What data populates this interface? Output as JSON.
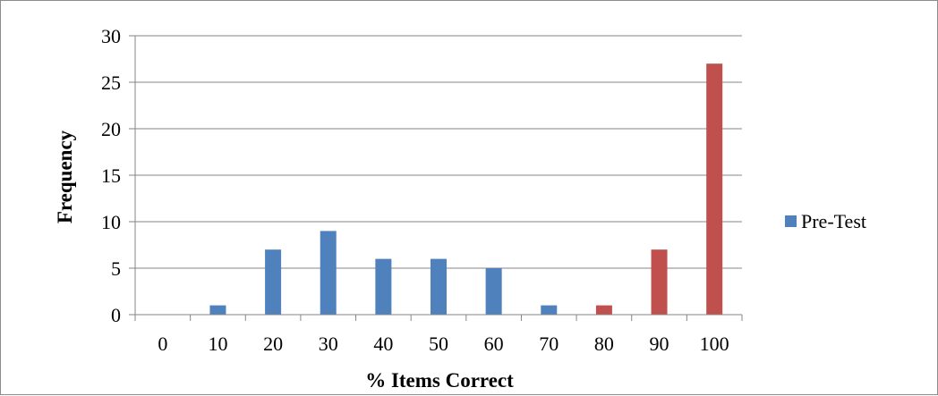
{
  "chart_data": {
    "type": "bar",
    "categories": [
      "0",
      "10",
      "20",
      "30",
      "40",
      "50",
      "60",
      "70",
      "80",
      "90",
      "100"
    ],
    "series": [
      {
        "name": "Pre-Test",
        "values": [
          0,
          1,
          7,
          9,
          6,
          6,
          5,
          1,
          null,
          null,
          null
        ],
        "color": "#4f81bd"
      },
      {
        "name": "",
        "values": [
          null,
          null,
          null,
          null,
          null,
          null,
          null,
          null,
          1,
          7,
          27
        ],
        "color": "#c0504d"
      }
    ],
    "xlabel": "% Items Correct",
    "ylabel": "Frequency",
    "ylim": [
      0,
      30
    ],
    "yticks": [
      "0",
      "5",
      "10",
      "15",
      "20",
      "25",
      "30"
    ],
    "grid": true,
    "legend_position": "right",
    "legend": [
      {
        "label": "Pre-Test",
        "color": "#4f81bd"
      }
    ]
  }
}
